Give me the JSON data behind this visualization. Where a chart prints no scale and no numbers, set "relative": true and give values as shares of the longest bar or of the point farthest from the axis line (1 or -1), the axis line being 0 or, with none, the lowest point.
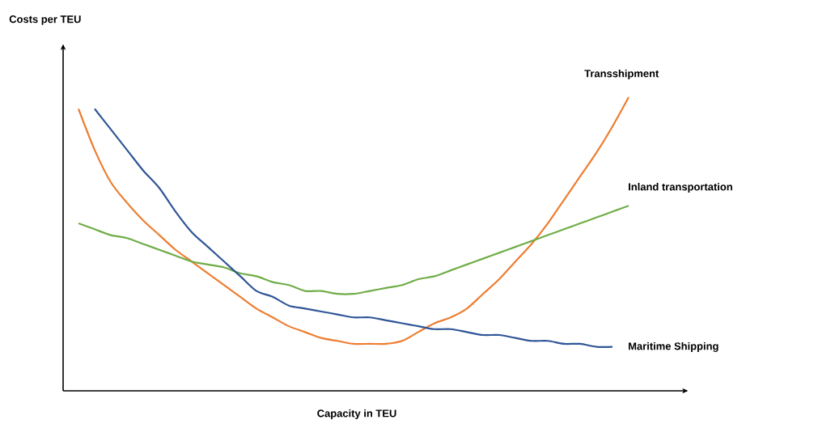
{
  "chart_data": {
    "type": "line",
    "title": "Costs per TEU",
    "xlabel": "Capacity in TEU",
    "relative": true,
    "categories": [
      null,
      null,
      null,
      null,
      null,
      null,
      null,
      null,
      null,
      null,
      null,
      null,
      null,
      null,
      null,
      null,
      null,
      null,
      null,
      null,
      null,
      null,
      null,
      null,
      null,
      null,
      null,
      null,
      null,
      null,
      null,
      null,
      null,
      null,
      null
    ],
    "series": [
      {
        "name": "Transshipment",
        "color": "#ed7d31",
        "values": [
          0.96,
          0.82,
          0.71,
          0.64,
          0.58,
          0.53,
          0.48,
          0.44,
          0.4,
          0.36,
          0.32,
          0.28,
          0.25,
          0.22,
          0.2,
          0.18,
          0.17,
          0.16,
          0.16,
          0.16,
          0.17,
          0.2,
          0.23,
          0.25,
          0.28,
          0.33,
          0.38,
          0.44,
          0.5,
          0.57,
          0.65,
          0.73,
          0.81,
          0.9,
          1.0
        ]
      },
      {
        "name": "Inland transportation",
        "color": "#70ad47",
        "values": [
          0.57,
          0.55,
          0.53,
          0.52,
          0.5,
          0.48,
          0.46,
          0.44,
          0.43,
          0.42,
          0.4,
          0.39,
          0.37,
          0.36,
          0.34,
          0.34,
          0.33,
          0.33,
          0.34,
          0.35,
          0.36,
          0.38,
          0.39,
          0.41,
          0.43,
          0.45,
          0.47,
          0.49,
          0.51,
          0.53,
          0.55,
          0.57,
          0.59,
          0.61,
          0.63
        ]
      },
      {
        "name": "Maritime Shipping",
        "color": "#2f5597",
        "values": [
          null,
          0.96,
          0.89,
          0.82,
          0.75,
          0.69,
          0.61,
          0.54,
          0.49,
          0.44,
          0.39,
          0.34,
          0.32,
          0.29,
          0.28,
          0.27,
          0.26,
          0.25,
          0.25,
          0.24,
          0.23,
          0.22,
          0.21,
          0.21,
          0.2,
          0.19,
          0.19,
          0.18,
          0.17,
          0.17,
          0.16,
          0.16,
          0.15,
          0.15,
          null
        ]
      }
    ]
  }
}
